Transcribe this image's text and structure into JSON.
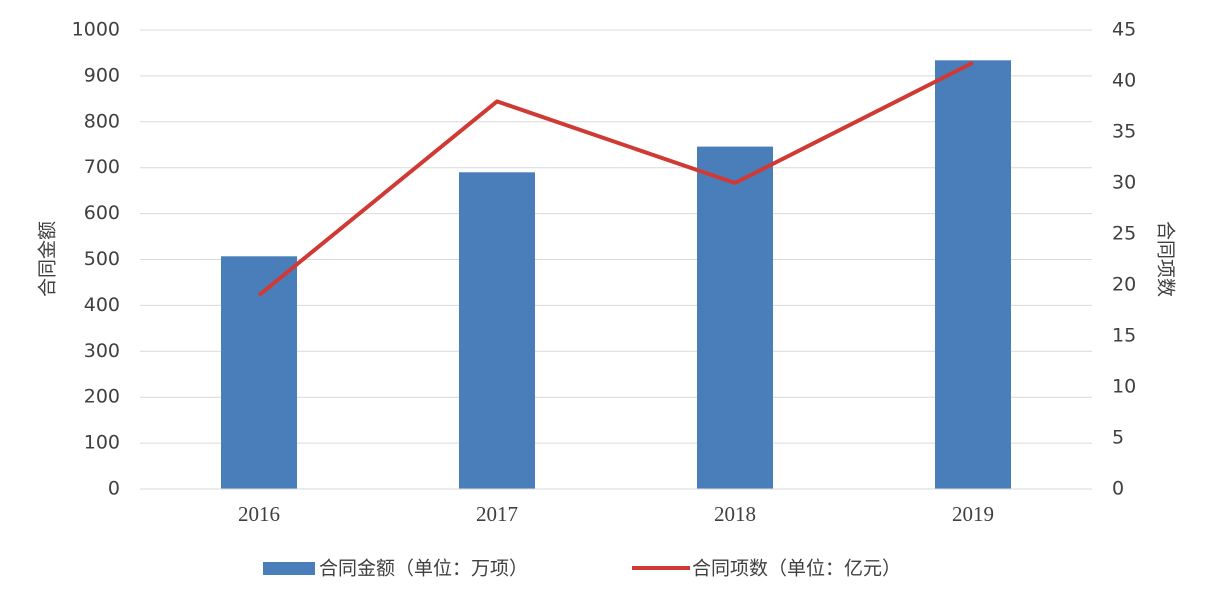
{
  "chart_data": {
    "type": "bar",
    "categories": [
      "2016",
      "2017",
      "2018",
      "2019"
    ],
    "series": [
      {
        "name": "合同金额（单位：万项）",
        "type": "bar",
        "color": "#4a7ebb",
        "values": [
          507,
          690,
          746,
          934
        ]
      },
      {
        "name": "合同项数（单位：亿元）",
        "type": "line",
        "axis": "y2",
        "color": "#d03a35",
        "values": [
          19,
          38,
          30,
          41.8
        ]
      }
    ],
    "ylabel": "合同金额",
    "y2label": "合同项数",
    "ylim": [
      0,
      1000
    ],
    "yticks": [
      0,
      100,
      200,
      300,
      400,
      500,
      600,
      700,
      800,
      900,
      1000
    ],
    "y2lim": [
      0,
      45
    ],
    "y2ticks": [
      0,
      5,
      10,
      15,
      20,
      25,
      30,
      35,
      40,
      45
    ],
    "grid": true,
    "legend": "bottom"
  }
}
